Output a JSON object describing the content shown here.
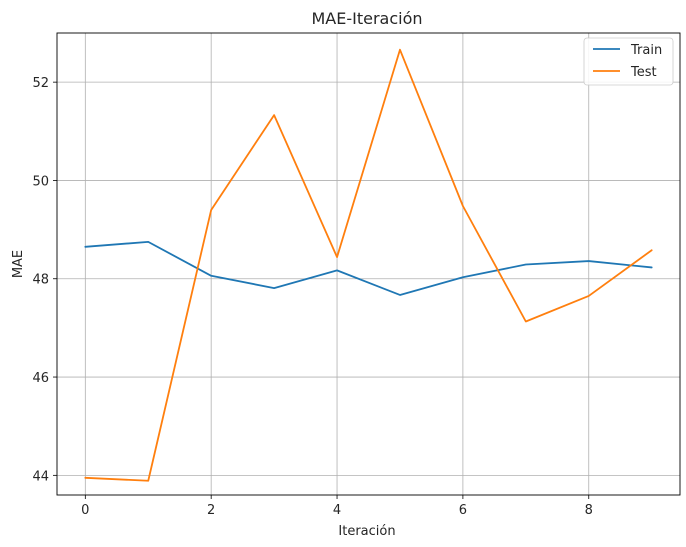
{
  "chart_data": {
    "type": "line",
    "title": "MAE-Iteración",
    "xlabel": "Iteración",
    "ylabel": "MAE",
    "x": [
      0,
      1,
      2,
      3,
      4,
      5,
      6,
      7,
      8,
      9
    ],
    "xlim": [
      -0.45,
      9.45
    ],
    "ylim": [
      43.6,
      53.0
    ],
    "xticks": [
      0,
      2,
      4,
      6,
      8
    ],
    "yticks": [
      44,
      46,
      48,
      50,
      52
    ],
    "grid": true,
    "legend_position": "top-right",
    "series": [
      {
        "name": "Train",
        "color": "#1f77b4",
        "values": [
          48.65,
          48.75,
          48.06,
          47.81,
          48.17,
          47.67,
          48.03,
          48.29,
          48.36,
          48.23
        ]
      },
      {
        "name": "Test",
        "color": "#ff7f0e",
        "values": [
          43.95,
          43.89,
          49.4,
          51.33,
          48.44,
          52.66,
          49.48,
          47.13,
          47.65,
          48.58
        ]
      }
    ]
  }
}
